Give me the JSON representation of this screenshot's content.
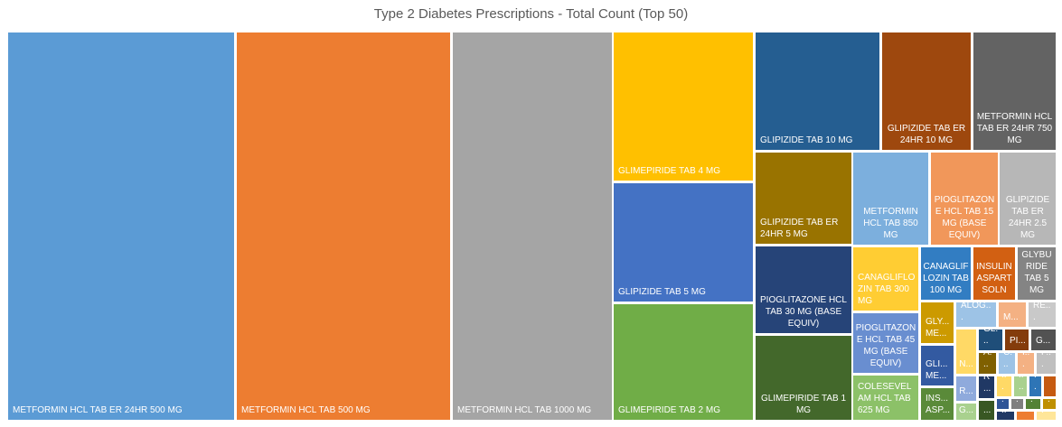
{
  "chart_data": {
    "type": "treemap",
    "title": "Type 2 Diabetes Prescriptions - Total Count (Top 50)",
    "nodes": [
      {
        "label": "METFORMIN HCL TAB ER 24HR 500 MG",
        "value": 2600,
        "color": "#5b9bd5"
      },
      {
        "label": "METFORMIN HCL TAB 500 MG",
        "value": 2450,
        "color": "#ed7d31"
      },
      {
        "label": "METFORMIN HCL TAB 1000 MG",
        "value": 1820,
        "color": "#a5a5a5"
      },
      {
        "label": "GLIMEPIRIDE TAB 4 MG",
        "value": 590,
        "color": "#ffc000"
      },
      {
        "label": "GLIPIZIDE TAB 5 MG",
        "value": 500,
        "color": "#4472c4"
      },
      {
        "label": "GLIMEPIRIDE TAB 2 MG",
        "value": 485,
        "color": "#70ad47"
      },
      {
        "label": "GLIPIZIDE TAB 10 MG",
        "value": 300,
        "color": "#255e91"
      },
      {
        "label": "GLIPIZIDE TAB ER 24HR 10 MG",
        "value": 215,
        "color": "#9e480e"
      },
      {
        "label": "METFORMIN HCL TAB ER 24HR 750 MG",
        "value": 200,
        "color": "#636363"
      },
      {
        "label": "GLIPIZIDE TAB ER 24HR 5 MG",
        "value": 160,
        "color": "#997300"
      },
      {
        "label": "PIOGLITAZONE HCL TAB 30 MG (BASE EQUIV)",
        "value": 150,
        "color": "#264478"
      },
      {
        "label": "GLIMEPIRIDE TAB 1 MG",
        "value": 155,
        "color": "#43682b"
      },
      {
        "label": "METFORMIN HCL TAB 850 MG",
        "value": 130,
        "color": "#7cafdd"
      },
      {
        "label": "PIOGLITAZONE HCL TAB 15 MG (BASE EQUIV)",
        "value": 120,
        "color": "#f1975a"
      },
      {
        "label": "GLIPIZIDE TAB ER 24HR 2.5 MG",
        "value": 115,
        "color": "#b7b7b7"
      },
      {
        "label": "CANAGLIFLOZIN TAB 300 MG",
        "value": 80,
        "color": "#ffcd33"
      },
      {
        "label": "PIOGLITAZONE HCL TAB 45 MG (BASE EQUIV)",
        "value": 75,
        "color": "#698ed0"
      },
      {
        "label": "COLESEVELAM HCL TAB 625 MG",
        "value": 60,
        "color": "#8cc168"
      },
      {
        "label": "CANAGLIFLOZIN TAB 100 MG",
        "value": 50,
        "color": "#327dc2"
      },
      {
        "label": "INSULIN ASPART SOLN",
        "value": 45,
        "color": "#d26012"
      },
      {
        "label": "GLYBURIDE TAB 5 MG",
        "value": 40,
        "color": "#848484"
      },
      {
        "label": "GLY... ME...",
        "value": 25,
        "color": "#cc9a00"
      },
      {
        "label": "GLI... ME...",
        "value": 20,
        "color": "#335aa1"
      },
      {
        "label": "INS... ASP...",
        "value": 20,
        "color": "#5a8a39"
      },
      {
        "label": "ALOG...",
        "value": 16,
        "color": "#9dc3e6"
      },
      {
        "label": "M...",
        "value": 10,
        "color": "#f4b183"
      },
      {
        "label": "RE...",
        "value": 10,
        "color": "#c9c9c9"
      },
      {
        "label": "N...",
        "value": 9,
        "color": "#ffd966"
      },
      {
        "label": "R...",
        "value": 9,
        "color": "#8faadc"
      },
      {
        "label": "G...",
        "value": 7,
        "color": "#a9d18e"
      },
      {
        "label": "GL...",
        "value": 7,
        "color": "#1f4e79"
      },
      {
        "label": "PI...",
        "value": 6,
        "color": "#843c0c"
      },
      {
        "label": "G...",
        "value": 6,
        "color": "#525252"
      },
      {
        "label": "A...",
        "value": 5,
        "color": "#7f6000"
      },
      {
        "label": "C...",
        "value": 5,
        "color": "#9dc3e6"
      },
      {
        "label": "I...",
        "value": 4,
        "color": "#f4b183"
      },
      {
        "label": "P...",
        "value": 4,
        "color": "#bfbfbf"
      },
      {
        "label": "R...",
        "value": 5,
        "color": "#203864"
      },
      {
        "label": "A...",
        "value": 5,
        "color": "#385723"
      },
      {
        "label": "C...",
        "value": 3,
        "color": "#ffd966"
      },
      {
        "label": "I...",
        "value": 3,
        "color": "#a9d18e"
      },
      {
        "label": "P...",
        "value": 3,
        "color": "#2e75b6"
      },
      {
        "label": "",
        "value": 3,
        "color": "#c55a11"
      },
      {
        "label": "A...",
        "value": 2,
        "color": "#2f5597"
      },
      {
        "label": "A...",
        "value": 2,
        "color": "#7f7f7f"
      },
      {
        "label": "C...",
        "value": 2,
        "color": "#548235"
      },
      {
        "label": "C...",
        "value": 2,
        "color": "#bf9000"
      },
      {
        "label": "A...",
        "value": 2,
        "color": "#203864"
      },
      {
        "label": "",
        "value": 2,
        "color": "#ed7d31"
      },
      {
        "label": "V...",
        "value": 2,
        "color": "#ffe699"
      }
    ]
  }
}
